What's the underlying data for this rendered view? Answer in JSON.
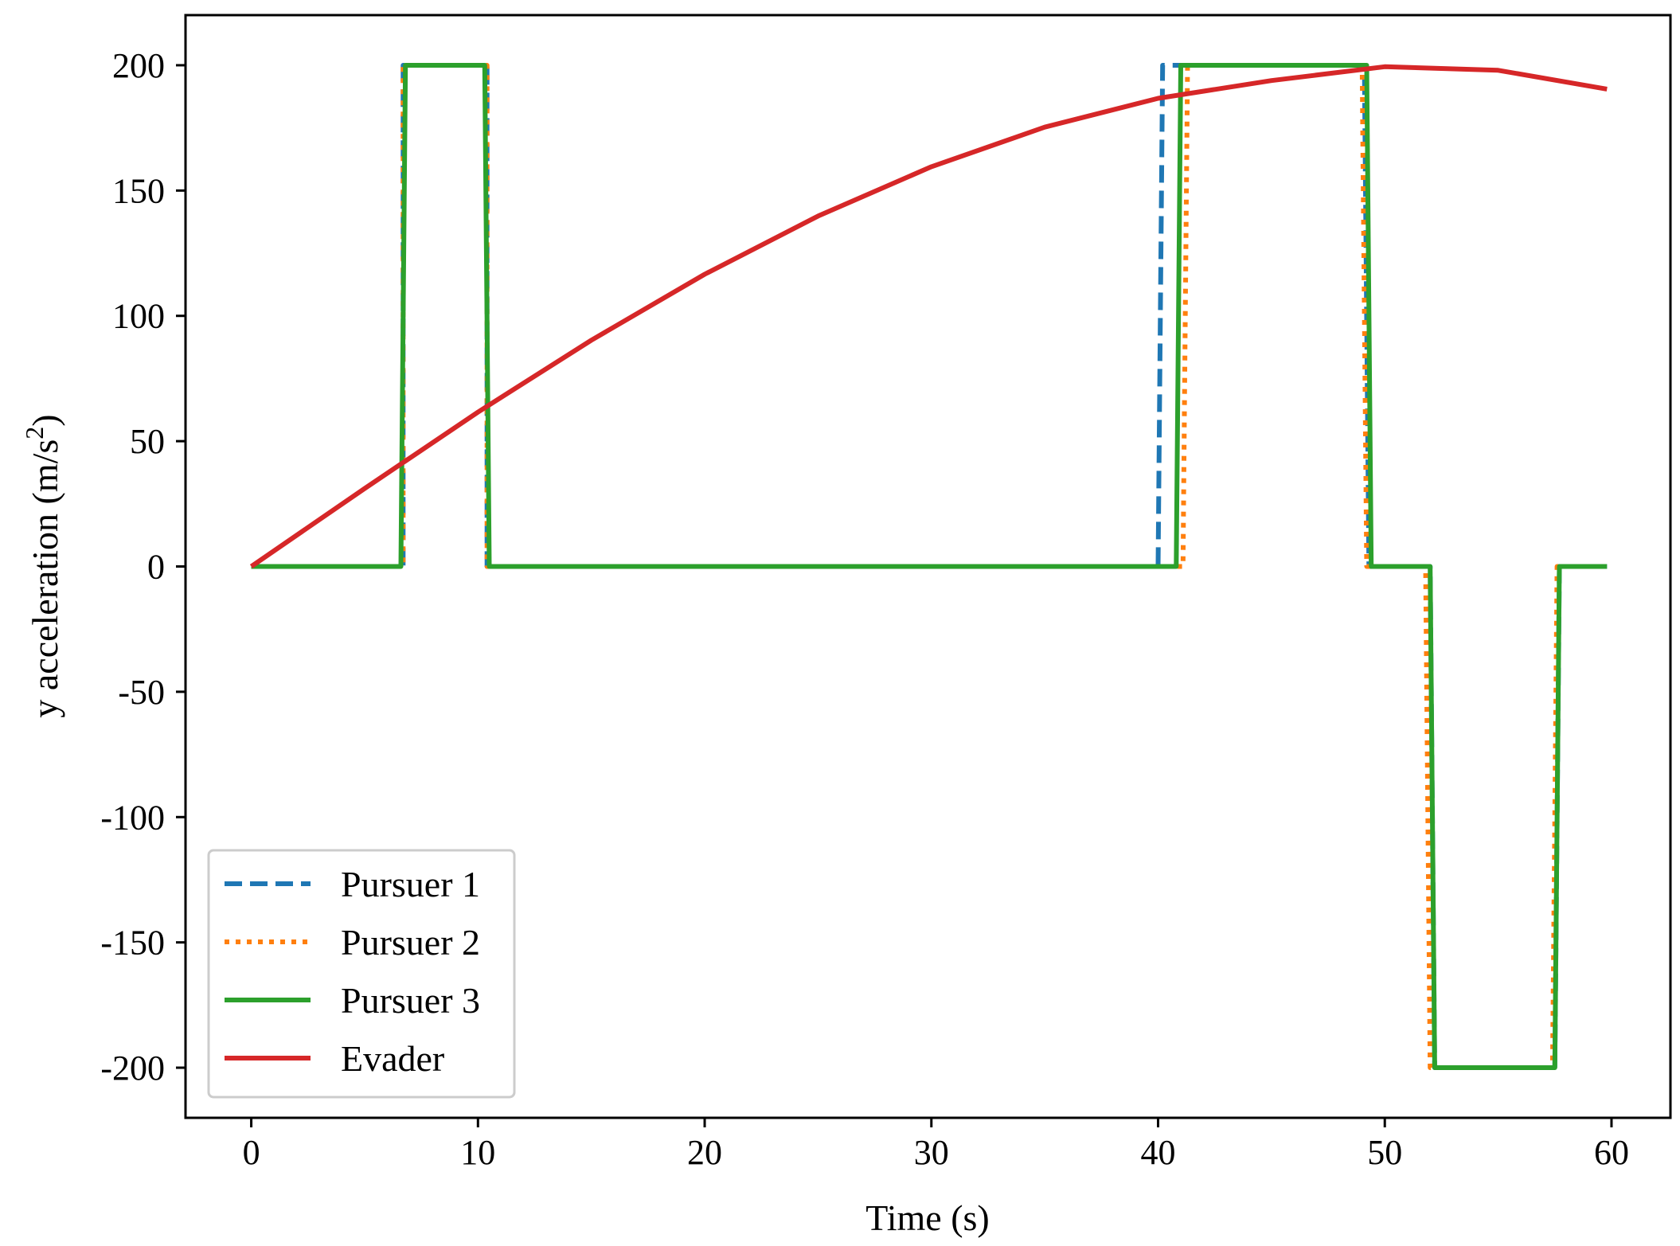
{
  "chart_data": {
    "type": "line",
    "xlabel": "Time (s)",
    "ylabel": {
      "main": "y acceleration (m/s",
      "sup": "2",
      "close": ")"
    },
    "xlim": [
      -2.9,
      62.6
    ],
    "ylim": [
      -220,
      220
    ],
    "xticks": [
      0,
      10,
      20,
      30,
      40,
      50,
      60
    ],
    "xtick_labels": [
      "0",
      "10",
      "20",
      "30",
      "40",
      "50",
      "60"
    ],
    "yticks": [
      -200,
      -150,
      -100,
      -50,
      0,
      50,
      100,
      150,
      200
    ],
    "ytick_labels": [
      "-200",
      "-150",
      "-100",
      "-50",
      "0",
      "50",
      "100",
      "150",
      "200"
    ],
    "grid": false,
    "legend": {
      "placement": "lower-left"
    },
    "series": [
      {
        "name": "Pursuer 1",
        "color": "#1f77b4",
        "style": "dashed",
        "x": [
          0,
          6.7,
          6.7,
          10.4,
          10.4,
          40.0,
          40.2,
          49.1,
          49.3,
          52.0,
          52.2,
          57.5,
          57.7,
          59.8
        ],
        "y": [
          0,
          0,
          200,
          200,
          0,
          0,
          200,
          200,
          0,
          0,
          -200,
          -200,
          0,
          0
        ]
      },
      {
        "name": "Pursuer 2",
        "color": "#ff7f0e",
        "style": "dotted",
        "x": [
          0,
          6.7,
          6.7,
          10.4,
          10.4,
          41.1,
          41.3,
          49.0,
          49.2,
          51.8,
          52.0,
          57.4,
          57.6,
          59.8
        ],
        "y": [
          0,
          0,
          200,
          200,
          0,
          0,
          200,
          200,
          0,
          0,
          -200,
          -200,
          0,
          0
        ]
      },
      {
        "name": "Pursuer 3",
        "color": "#2ca02c",
        "style": "solid",
        "x": [
          0,
          6.6,
          6.8,
          10.3,
          10.5,
          40.8,
          41.0,
          49.2,
          49.4,
          52.0,
          52.2,
          57.5,
          57.7,
          59.8
        ],
        "y": [
          0,
          0,
          200,
          200,
          0,
          0,
          200,
          200,
          0,
          0,
          -200,
          -200,
          0,
          0
        ]
      },
      {
        "name": "Evader",
        "color": "#d62728",
        "style": "solid",
        "x": [
          0,
          5,
          10,
          15,
          20,
          25,
          30,
          35,
          40,
          45,
          50,
          55,
          59.8
        ],
        "y": [
          0,
          31.1,
          61.6,
          90.3,
          116.6,
          139.8,
          159.5,
          175.3,
          186.8,
          193.9,
          199.4,
          198.0,
          190.5
        ]
      }
    ]
  }
}
